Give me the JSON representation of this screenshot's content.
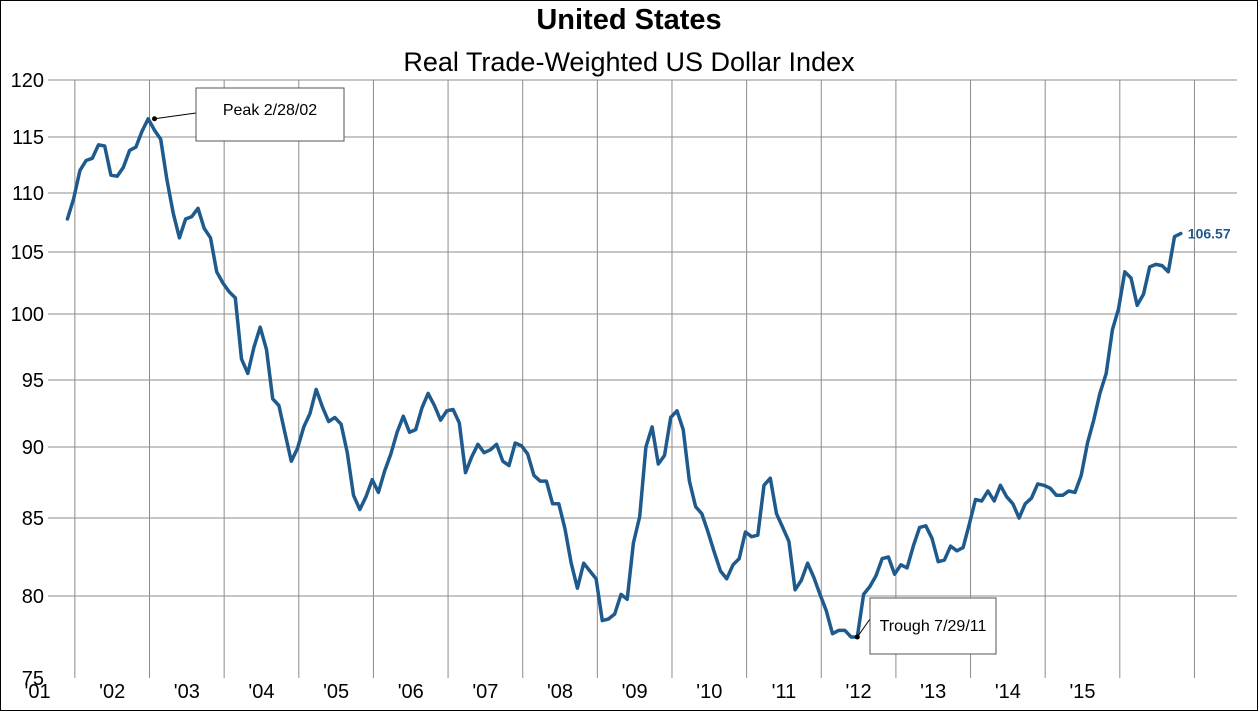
{
  "chart_data": {
    "type": "line",
    "title": "United States",
    "subtitle": "Real Trade-Weighted US Dollar Index",
    "xlabel": "",
    "ylabel": "",
    "ylim": [
      75,
      120
    ],
    "y_ticks": [
      120,
      115,
      110,
      105,
      100,
      95,
      90,
      85,
      80,
      75
    ],
    "x_tick_labels": [
      "'01",
      "'02",
      "'03",
      "'04",
      "'05",
      "'06",
      "'07",
      "'08",
      "'09",
      "'10",
      "'11",
      "'12",
      "'13",
      "'14",
      "'15"
    ],
    "grid": true,
    "series": [
      {
        "color": "#1f5a8c",
        "x": [
          2001.0,
          2001.083,
          2001.167,
          2001.25,
          2001.333,
          2001.417,
          2001.5,
          2001.583,
          2001.667,
          2001.75,
          2001.833,
          2001.917,
          2002.0,
          2002.083,
          2002.167,
          2002.25,
          2002.333,
          2002.417,
          2002.5,
          2002.583,
          2002.667,
          2002.75,
          2002.833,
          2002.917,
          2003.0,
          2003.083,
          2003.167,
          2003.25,
          2003.333,
          2003.417,
          2003.5,
          2003.583,
          2003.667,
          2003.75,
          2003.833,
          2003.917,
          2004.0,
          2004.083,
          2004.167,
          2004.25,
          2004.333,
          2004.417,
          2004.5,
          2004.583,
          2004.667,
          2004.75,
          2004.833,
          2004.917,
          2005.0,
          2005.083,
          2005.167,
          2005.25,
          2005.333,
          2005.417,
          2005.5,
          2005.583,
          2005.667,
          2005.75,
          2005.833,
          2005.917,
          2006.0,
          2006.083,
          2006.167,
          2006.25,
          2006.333,
          2006.417,
          2006.5,
          2006.583,
          2006.667,
          2006.75,
          2006.833,
          2006.917,
          2007.0,
          2007.083,
          2007.167,
          2007.25,
          2007.333,
          2007.417,
          2007.5,
          2007.583,
          2007.667,
          2007.75,
          2007.833,
          2007.917,
          2008.0,
          2008.083,
          2008.167,
          2008.25,
          2008.333,
          2008.417,
          2008.5,
          2008.583,
          2008.667,
          2008.75,
          2008.833,
          2008.917,
          2009.0,
          2009.083,
          2009.167,
          2009.25,
          2009.333,
          2009.417,
          2009.5,
          2009.583,
          2009.667,
          2009.75,
          2009.833,
          2009.917,
          2010.0,
          2010.083,
          2010.167,
          2010.25,
          2010.333,
          2010.417,
          2010.5,
          2010.583,
          2010.667,
          2010.75,
          2010.833,
          2010.917,
          2011.0,
          2011.083,
          2011.167,
          2011.25,
          2011.333,
          2011.417,
          2011.5,
          2011.583,
          2011.667,
          2011.75,
          2011.833,
          2011.917,
          2012.0,
          2012.083,
          2012.167,
          2012.25,
          2012.333,
          2012.417,
          2012.5,
          2012.583,
          2012.667,
          2012.75,
          2012.833,
          2012.917,
          2013.0,
          2013.083,
          2013.167,
          2013.25,
          2013.333,
          2013.417,
          2013.5,
          2013.583,
          2013.667,
          2013.75,
          2013.833,
          2013.917,
          2014.0,
          2014.083,
          2014.167,
          2014.25,
          2014.333,
          2014.417,
          2014.5,
          2014.583,
          2014.667,
          2014.75,
          2014.833,
          2014.917,
          2015.0,
          2015.083,
          2015.167,
          2015.25,
          2015.333,
          2015.417,
          2015.5,
          2015.583,
          2015.667,
          2015.75,
          2015.833,
          2015.917
        ],
        "y": [
          107.8,
          109.5,
          112.0,
          112.9,
          113.1,
          114.3,
          114.2,
          111.6,
          111.5,
          112.3,
          113.8,
          114.1,
          115.5,
          116.6,
          115.6,
          114.8,
          111.2,
          108.3,
          106.2,
          107.8,
          108.0,
          108.7,
          107.0,
          106.2,
          103.4,
          102.5,
          101.8,
          101.3,
          96.6,
          95.5,
          97.5,
          99.0,
          97.3,
          93.6,
          93.1,
          91.0,
          89.0,
          89.9,
          91.5,
          92.5,
          94.3,
          93.0,
          91.9,
          92.2,
          91.7,
          89.6,
          86.6,
          85.6,
          86.5,
          87.7,
          86.8,
          88.3,
          89.5,
          91.1,
          92.3,
          91.1,
          91.3,
          92.9,
          94.0,
          93.1,
          92.0,
          92.7,
          92.8,
          91.8,
          88.2,
          89.3,
          90.2,
          89.6,
          89.8,
          90.2,
          89.0,
          88.7,
          90.3,
          90.1,
          89.5,
          88.0,
          87.6,
          87.6,
          86.0,
          86.0,
          84.3,
          82.1,
          80.5,
          82.1,
          81.6,
          81.1,
          78.5,
          78.6,
          78.9,
          80.1,
          79.8,
          83.4,
          85.1,
          90.0,
          91.5,
          88.8,
          89.4,
          92.2,
          92.7,
          91.3,
          87.6,
          85.8,
          85.3,
          84.1,
          82.8,
          81.6,
          81.1,
          82.0,
          82.4,
          84.1,
          83.8,
          83.9,
          87.3,
          87.8,
          85.3,
          84.4,
          83.5,
          80.4,
          81.0,
          82.1,
          81.2,
          80.1,
          79.1,
          77.7,
          77.9,
          77.9,
          77.5,
          77.5,
          80.1,
          80.6,
          81.3,
          82.4,
          82.5,
          81.4,
          82.0,
          81.8,
          83.2,
          84.4,
          84.5,
          83.7,
          82.2,
          82.3,
          83.2,
          82.9,
          83.1,
          84.6,
          86.3,
          86.2,
          86.9,
          86.2,
          87.3,
          86.5,
          86.0,
          85.0,
          86.0,
          86.4,
          87.4,
          87.3,
          87.1,
          86.6,
          86.6,
          86.9,
          86.8,
          88.0,
          90.3,
          92.0,
          94.0,
          95.5,
          98.8,
          100.4,
          103.4,
          102.9,
          100.7,
          101.6,
          103.8,
          104.0,
          103.9,
          103.4,
          106.3,
          106.57
        ]
      }
    ],
    "annotations": [
      {
        "text": "Peak 2/28/02",
        "x": 2002.167,
        "y": 116.6
      },
      {
        "text": "Trough 7/29/11",
        "x": 2011.583,
        "y": 77.5
      }
    ],
    "last_value_label": "106.57"
  }
}
